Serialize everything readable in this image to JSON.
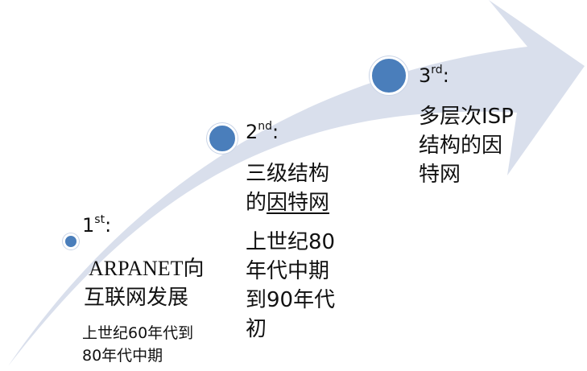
{
  "diagram": {
    "arrow_color": "#d9dfec",
    "dot_color": "#4a7ebb",
    "stages": [
      {
        "ordinal_number": "1",
        "ordinal_suffix": "st",
        "punct": ":",
        "title_lines": [
          "ARPANET向",
          "互联网发展"
        ],
        "period_lines": [
          "上世纪60年代到",
          "80年代中期"
        ]
      },
      {
        "ordinal_number": "2",
        "ordinal_suffix": "nd",
        "punct": ":",
        "title_lines": [
          "三级结构"
        ],
        "title_line2_prefix": "的",
        "title_line2_underlined": "因特网",
        "period_lines": [
          "上世纪80",
          "年代中期",
          "到90年代",
          "初"
        ]
      },
      {
        "ordinal_number": "3",
        "ordinal_suffix": "rd",
        "punct": ":",
        "title_lines": [
          "多层次ISP",
          "结构的因",
          "特网"
        ]
      }
    ]
  }
}
